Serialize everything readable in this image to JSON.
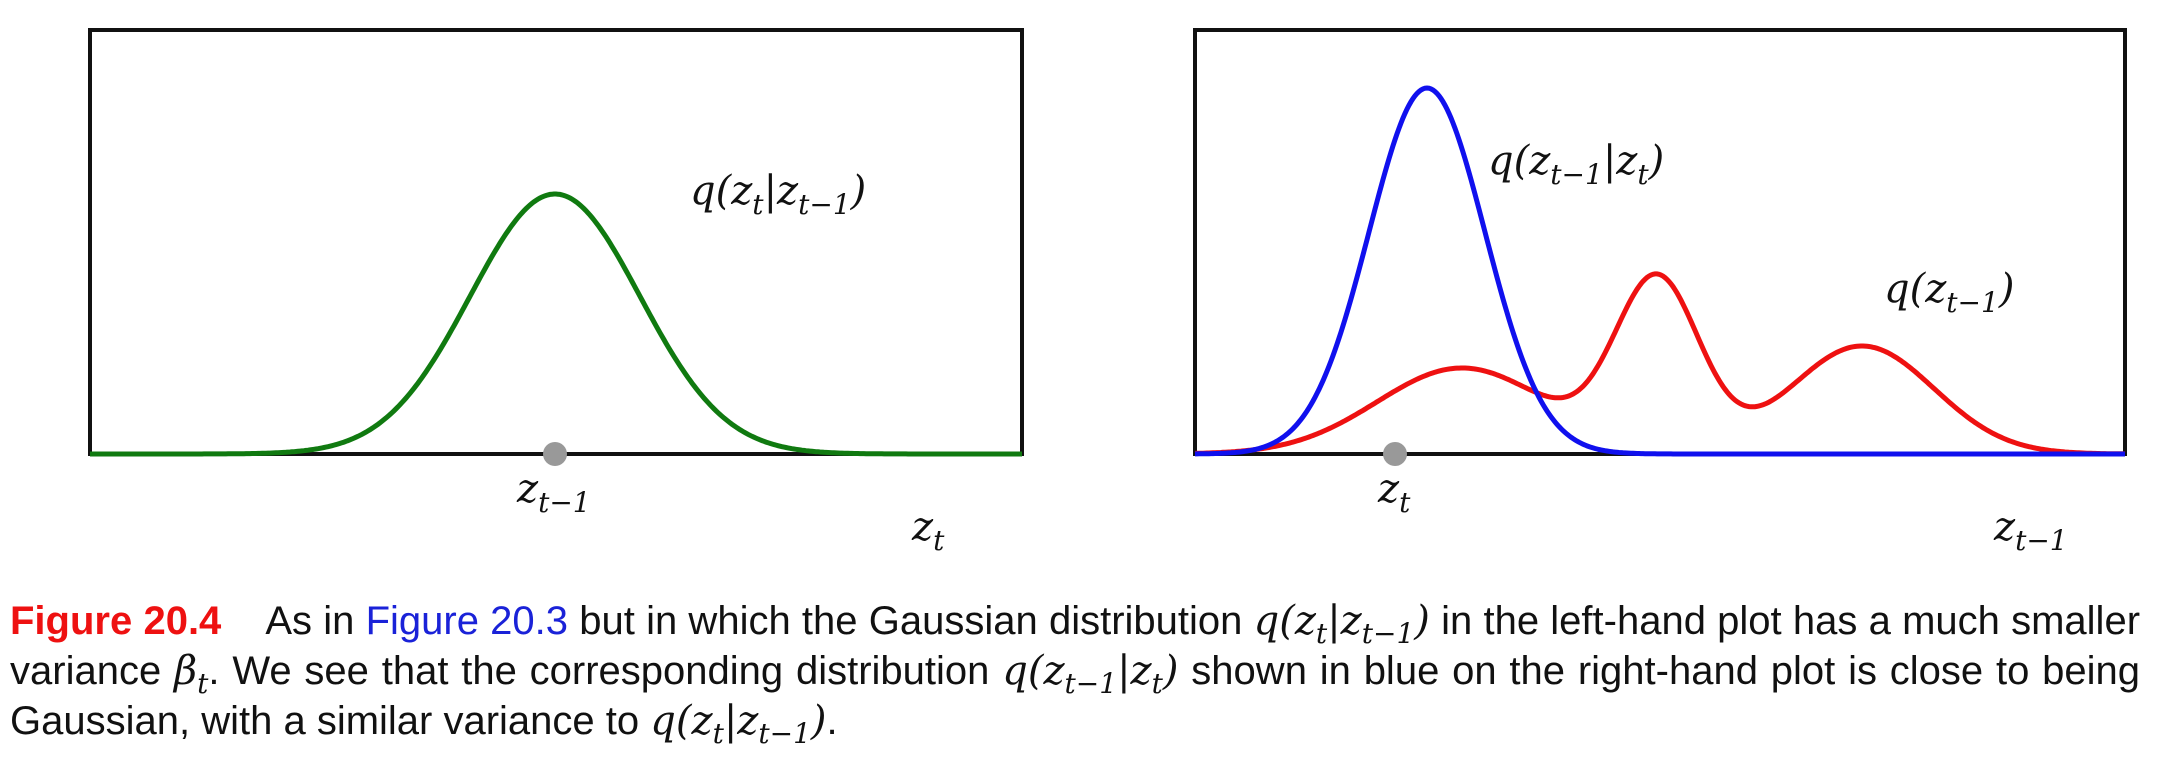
{
  "figure": {
    "left_plot": {
      "curve_label": "q(z_t|z_{t-1})",
      "point_label": "z_{t-1}",
      "axis_label": "z_t",
      "curve_color": "#107a10"
    },
    "right_plot": {
      "blue_curve_label": "q(z_{t-1}|z_t)",
      "red_curve_label": "q(z_{t-1})",
      "point_label": "z_t",
      "axis_label": "z_{t-1}",
      "blue_color": "#1010ee",
      "red_color": "#ee1111"
    },
    "point_color": "#999999"
  },
  "caption": {
    "label": "Figure 20.4",
    "text_1": "As in ",
    "ref": "Figure 20.3",
    "text_2": " but in which the Gaussian distribution ",
    "math_1": "q(z_t|z_{t-1})",
    "text_3": " in the left-hand plot has a much smaller variance ",
    "math_2": "β_t",
    "text_4": ". We see that the corresponding distribution ",
    "math_3": "q(z_{t-1}|z_t)",
    "text_5": " shown in blue on the right-hand plot is close to being Gaussian, with a similar variance to ",
    "math_4": "q(z_t|z_{t-1})",
    "text_6": "."
  }
}
